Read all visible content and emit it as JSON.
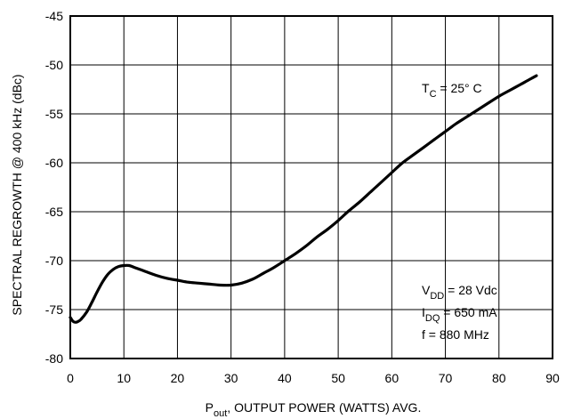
{
  "chart_data": {
    "type": "line",
    "title": "",
    "xlabel": {
      "main": "P",
      "sub": "out",
      "rest": ", OUTPUT POWER (WATTS) AVG."
    },
    "ylabel": "SPECTRAL REGROWTH @ 400 kHz (dBc)",
    "xlim": [
      0,
      90
    ],
    "ylim": [
      -80,
      -45
    ],
    "xticks": [
      0,
      10,
      20,
      30,
      40,
      50,
      60,
      70,
      80,
      90
    ],
    "yticks": [
      -45,
      -50,
      -55,
      -60,
      -65,
      -70,
      -75,
      -80
    ],
    "xtick_labels": [
      "0",
      "10",
      "20",
      "30",
      "40",
      "50",
      "60",
      "70",
      "80",
      "90"
    ],
    "ytick_labels": [
      "-45",
      "-50",
      "-55",
      "-60",
      "-65",
      "-70",
      "-75",
      "-80"
    ],
    "grid": true,
    "series": [
      {
        "x": [
          0,
          0.5,
          1,
          1.5,
          2,
          3,
          4,
          5,
          6,
          7,
          8,
          9,
          10,
          11,
          12,
          14,
          16,
          18,
          20,
          22,
          24,
          26,
          28,
          30,
          32,
          34,
          36,
          38,
          40,
          42,
          44,
          46,
          48,
          50,
          52,
          54,
          56,
          58,
          60,
          62,
          64,
          66,
          68,
          70,
          72,
          74,
          76,
          78,
          80,
          82,
          84,
          86,
          87
        ],
        "y": [
          -75.8,
          -76.2,
          -76.3,
          -76.2,
          -76.0,
          -75.3,
          -74.3,
          -73.2,
          -72.2,
          -71.4,
          -70.9,
          -70.6,
          -70.5,
          -70.5,
          -70.7,
          -71.1,
          -71.5,
          -71.8,
          -72.0,
          -72.2,
          -72.3,
          -72.4,
          -72.5,
          -72.5,
          -72.3,
          -71.9,
          -71.3,
          -70.7,
          -70.0,
          -69.3,
          -68.5,
          -67.6,
          -66.8,
          -65.9,
          -64.9,
          -64.0,
          -63.0,
          -62.0,
          -61.0,
          -60.0,
          -59.2,
          -58.4,
          -57.6,
          -56.8,
          -56.0,
          -55.3,
          -54.6,
          -53.9,
          -53.2,
          -52.6,
          -52.0,
          -51.4,
          -51.1
        ]
      }
    ],
    "annotations": {
      "tc": {
        "main": "T",
        "sub": "C",
        "rest": " = 25° C"
      },
      "vdd": {
        "main": "V",
        "sub": "DD",
        "rest": " = 28 Vdc"
      },
      "idq": {
        "main": "I",
        "sub": "DQ",
        "rest": " = 650 mA"
      },
      "freq": "f = 880 MHz"
    },
    "line_color": "#000000"
  }
}
